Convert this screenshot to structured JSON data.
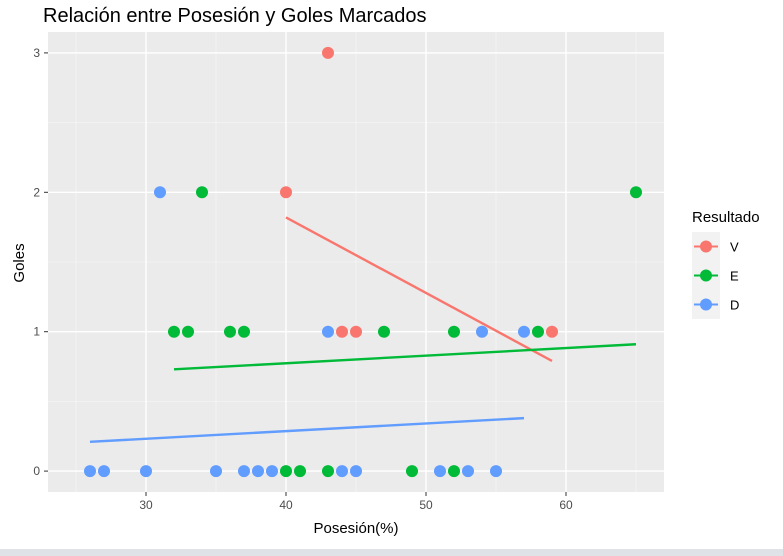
{
  "chart_data": {
    "type": "scatter",
    "title": "Relación entre Posesión y Goles Marcados",
    "xlabel": "Posesión(%)",
    "ylabel": "Goles",
    "xlim": [
      23.0,
      67.0
    ],
    "ylim": [
      -0.15,
      3.15
    ],
    "xticks": [
      30,
      40,
      50,
      60
    ],
    "yticks": [
      0,
      1,
      2,
      3
    ],
    "grid": true,
    "legend": {
      "title": "Resultado",
      "position": "right",
      "entries": [
        "V",
        "E",
        "D"
      ]
    },
    "series": [
      {
        "name": "V",
        "color": "#F8766D",
        "points": [
          [
            43,
            3
          ],
          [
            40,
            2
          ],
          [
            44,
            1
          ],
          [
            45,
            1
          ],
          [
            59,
            1
          ]
        ],
        "trend": {
          "x": [
            40,
            59
          ],
          "y": [
            1.82,
            0.79
          ]
        }
      },
      {
        "name": "E",
        "color": "#00BA38",
        "points": [
          [
            34,
            2
          ],
          [
            65,
            2
          ],
          [
            32,
            1
          ],
          [
            33,
            1
          ],
          [
            36,
            1
          ],
          [
            37,
            1
          ],
          [
            47,
            1
          ],
          [
            52,
            1
          ],
          [
            58,
            1
          ],
          [
            40,
            0
          ],
          [
            41,
            0
          ],
          [
            43,
            0
          ],
          [
            49,
            0
          ],
          [
            52,
            0
          ]
        ],
        "trend": {
          "x": [
            32,
            65
          ],
          "y": [
            0.73,
            0.91
          ]
        }
      },
      {
        "name": "D",
        "color": "#619CFF",
        "points": [
          [
            31,
            2
          ],
          [
            43,
            1
          ],
          [
            54,
            1
          ],
          [
            57,
            1
          ],
          [
            26,
            0
          ],
          [
            27,
            0
          ],
          [
            30,
            0
          ],
          [
            35,
            0
          ],
          [
            37,
            0
          ],
          [
            38,
            0
          ],
          [
            39,
            0
          ],
          [
            44,
            0
          ],
          [
            45,
            0
          ],
          [
            51,
            0
          ],
          [
            53,
            0
          ],
          [
            55,
            0
          ]
        ],
        "trend": {
          "x": [
            26,
            57
          ],
          "y": [
            0.21,
            0.38
          ]
        }
      }
    ]
  }
}
